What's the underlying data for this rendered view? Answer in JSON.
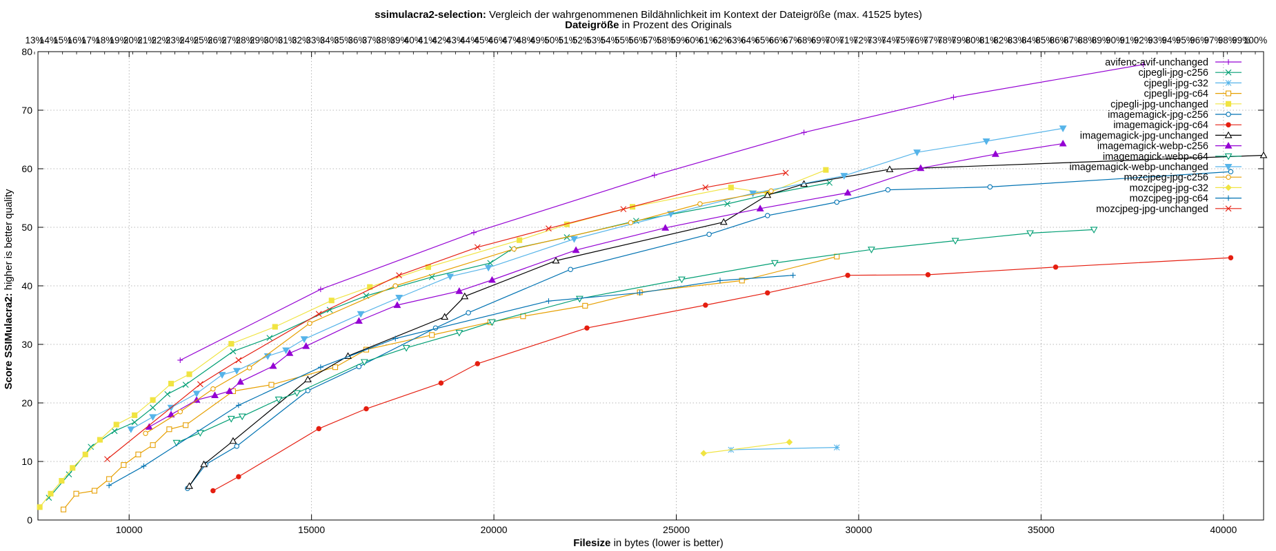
{
  "title_bold": "ssimulacra2-selection:",
  "title_rest": " Vergleich der wahrgenommenen Bildähnlichkeit im Kontext der Dateigröße (max. 41525 bytes)",
  "x2label_bold": "Dateigröße",
  "x2label_rest": " in Prozent des Originals",
  "xlabel_bold": "Filesize",
  "xlabel_rest": " in bytes (lower is better)",
  "ylabel_bold": "Score SSIMulacra2:",
  "ylabel_rest": " higher is better quality",
  "chart_data": {
    "type": "line",
    "title": "ssimulacra2-selection: Vergleich der wahrgenommenen Bildähnlichkeit im Kontext der Dateigröße (max. 41525 bytes)",
    "xlabel": "Filesize in bytes (lower is better)",
    "ylabel": "Score SSIMulacra2: higher is better quality",
    "x2label": "Dateigröße in Prozent des Originals",
    "xlim": [
      7500,
      41100
    ],
    "ylim": [
      0,
      80
    ],
    "xticks": [
      10000,
      15000,
      20000,
      25000,
      30000,
      35000,
      40000
    ],
    "yticks": [
      0,
      10,
      20,
      30,
      40,
      50,
      60,
      70,
      80
    ],
    "x2ticks": [
      "13%",
      "14%",
      "15%",
      "16%",
      "17%",
      "18%",
      "19%",
      "20%",
      "21%",
      "22%",
      "23%",
      "24%",
      "25%",
      "26%",
      "27%",
      "28%",
      "29%",
      "30%",
      "31%",
      "32%",
      "33%",
      "34%",
      "35%",
      "36%",
      "37%",
      "38%",
      "39%",
      "40%",
      "41%",
      "42%",
      "43%",
      "44%",
      "45%",
      "46%",
      "47%",
      "48%",
      "49%",
      "50%",
      "51%",
      "52%",
      "53%",
      "54%",
      "55%",
      "56%",
      "57%",
      "58%",
      "59%",
      "60%",
      "61%",
      "62%",
      "63%",
      "64%",
      "65%",
      "66%",
      "67%",
      "68%",
      "69%",
      "70%",
      "71%",
      "72%",
      "73%",
      "74%",
      "75%",
      "76%",
      "77%",
      "78%",
      "79%",
      "80%",
      "81%",
      "82%",
      "83%",
      "84%",
      "85%",
      "86%",
      "87%",
      "88%",
      "89%",
      "90%",
      "91%",
      "92%",
      "93%",
      "94%",
      "95%",
      "96%",
      "97%",
      "98%",
      "99%",
      "100%"
    ],
    "grid": true,
    "legend_position": "top-right",
    "series": [
      {
        "name": "avifenc-avif-unchanged",
        "color": "#9400d3",
        "marker": "plus",
        "points": [
          [
            11400,
            27.3
          ],
          [
            15250,
            39.4
          ],
          [
            19450,
            49.1
          ],
          [
            24400,
            58.9
          ],
          [
            28500,
            66.2
          ],
          [
            32600,
            72.2
          ],
          [
            37800,
            77.8
          ]
        ]
      },
      {
        "name": "cjpegli-jpg-c256",
        "color": "#009e73",
        "marker": "x",
        "points": [
          [
            7800,
            3.8
          ],
          [
            8350,
            7.8
          ],
          [
            8950,
            12.5
          ],
          [
            9600,
            15.2
          ],
          [
            10150,
            16.7
          ],
          [
            10650,
            19.2
          ],
          [
            11050,
            21.5
          ],
          [
            11550,
            23.1
          ],
          [
            12850,
            28.8
          ],
          [
            13850,
            31.1
          ],
          [
            15500,
            35.9
          ],
          [
            16500,
            38.3
          ],
          [
            18300,
            41.5
          ],
          [
            19900,
            43.9
          ],
          [
            20500,
            46.3
          ],
          [
            22000,
            48.3
          ],
          [
            23900,
            51.1
          ],
          [
            26400,
            54.0
          ],
          [
            27500,
            55.6
          ],
          [
            29200,
            57.6
          ]
        ]
      },
      {
        "name": "cjpegli-jpg-c32",
        "color": "#56b4e9",
        "marker": "star",
        "points": [
          [
            26500,
            12.0
          ],
          [
            29400,
            12.4
          ]
        ]
      },
      {
        "name": "cjpegli-jpg-c64",
        "color": "#e69f00",
        "marker": "square-open",
        "points": [
          [
            8200,
            1.8
          ],
          [
            8550,
            4.5
          ],
          [
            9050,
            5.0
          ],
          [
            9450,
            7.0
          ],
          [
            9850,
            9.4
          ],
          [
            10250,
            11.2
          ],
          [
            10650,
            12.8
          ],
          [
            11100,
            15.5
          ],
          [
            11550,
            16.2
          ],
          [
            12850,
            22.0
          ],
          [
            13900,
            23.1
          ],
          [
            15650,
            26.1
          ],
          [
            16500,
            29.1
          ],
          [
            18300,
            31.6
          ],
          [
            19900,
            33.8
          ],
          [
            20800,
            34.8
          ],
          [
            22500,
            36.6
          ],
          [
            24000,
            38.9
          ],
          [
            26800,
            40.9
          ],
          [
            29400,
            45.0
          ]
        ]
      },
      {
        "name": "cjpegli-jpg-unchanged",
        "color": "#f0e442",
        "marker": "square",
        "points": [
          [
            7550,
            2.2
          ],
          [
            7850,
            4.5
          ],
          [
            8150,
            6.7
          ],
          [
            8450,
            8.9
          ],
          [
            8800,
            11.2
          ],
          [
            9200,
            13.7
          ],
          [
            9650,
            16.3
          ],
          [
            10150,
            17.9
          ],
          [
            10650,
            20.5
          ],
          [
            11150,
            23.3
          ],
          [
            11650,
            24.9
          ],
          [
            12800,
            30.1
          ],
          [
            14000,
            33.0
          ],
          [
            15550,
            37.5
          ],
          [
            16600,
            39.8
          ],
          [
            18200,
            43.2
          ],
          [
            20700,
            47.8
          ],
          [
            22000,
            50.5
          ],
          [
            23800,
            53.5
          ],
          [
            26500,
            56.8
          ],
          [
            27500,
            55.8
          ],
          [
            29100,
            59.8
          ]
        ]
      },
      {
        "name": "imagemagick-jpg-c256",
        "color": "#0072b2",
        "marker": "circle-open",
        "points": [
          [
            11600,
            5.4
          ],
          [
            12100,
            9.5
          ],
          [
            12950,
            12.6
          ],
          [
            14900,
            22.1
          ],
          [
            16300,
            26.2
          ],
          [
            18400,
            32.8
          ],
          [
            19300,
            35.4
          ],
          [
            22100,
            42.8
          ],
          [
            25900,
            48.8
          ],
          [
            27500,
            52.0
          ],
          [
            29400,
            54.3
          ],
          [
            30800,
            56.4
          ],
          [
            33600,
            56.9
          ],
          [
            40200,
            59.5
          ]
        ]
      },
      {
        "name": "imagemagick-jpg-c64",
        "color": "#e51e10",
        "marker": "circle",
        "points": [
          [
            12300,
            5.0
          ],
          [
            13000,
            7.4
          ],
          [
            15200,
            15.6
          ],
          [
            16500,
            19.0
          ],
          [
            18550,
            23.4
          ],
          [
            19550,
            26.7
          ],
          [
            22550,
            32.8
          ],
          [
            25800,
            36.7
          ],
          [
            27500,
            38.8
          ],
          [
            29700,
            41.8
          ],
          [
            31900,
            41.9
          ],
          [
            35400,
            43.2
          ],
          [
            40200,
            44.8
          ]
        ]
      },
      {
        "name": "imagemagick-jpg-unchanged",
        "color": "#000000",
        "marker": "triangle-open",
        "points": [
          [
            11650,
            5.8
          ],
          [
            12050,
            9.5
          ],
          [
            12850,
            13.5
          ],
          [
            14900,
            24.0
          ],
          [
            16000,
            28.0
          ],
          [
            18650,
            34.7
          ],
          [
            19200,
            38.2
          ],
          [
            21700,
            44.3
          ],
          [
            26300,
            50.9
          ],
          [
            27500,
            55.5
          ],
          [
            28500,
            57.4
          ],
          [
            30850,
            59.9
          ],
          [
            41100,
            62.3
          ]
        ]
      },
      {
        "name": "imagemagick-webp-c256",
        "color": "#9400d3",
        "marker": "triangle",
        "points": [
          [
            10550,
            15.9
          ],
          [
            11150,
            18.0
          ],
          [
            11850,
            20.5
          ],
          [
            12350,
            21.3
          ],
          [
            12750,
            22.0
          ],
          [
            13050,
            23.6
          ],
          [
            13950,
            26.3
          ],
          [
            14400,
            28.5
          ],
          [
            14850,
            29.7
          ],
          [
            16300,
            34.0
          ],
          [
            17350,
            36.7
          ],
          [
            19050,
            39.1
          ],
          [
            19950,
            41.0
          ],
          [
            22250,
            46.1
          ],
          [
            24700,
            49.9
          ],
          [
            27300,
            53.2
          ],
          [
            29700,
            55.9
          ],
          [
            31700,
            60.1
          ],
          [
            33750,
            62.5
          ],
          [
            35600,
            64.3
          ]
        ]
      },
      {
        "name": "imagemagick-webp-c64",
        "color": "#009e73",
        "marker": "triangle-down-open",
        "points": [
          [
            11300,
            13.2
          ],
          [
            11950,
            14.9
          ],
          [
            12800,
            17.3
          ],
          [
            13100,
            17.7
          ],
          [
            14100,
            20.6
          ],
          [
            14600,
            21.7
          ],
          [
            16450,
            27.0
          ],
          [
            17600,
            29.4
          ],
          [
            19050,
            32.0
          ],
          [
            19950,
            33.8
          ],
          [
            22350,
            37.8
          ],
          [
            25150,
            41.1
          ],
          [
            27700,
            43.9
          ],
          [
            30350,
            46.2
          ],
          [
            32650,
            47.7
          ],
          [
            34700,
            49.0
          ],
          [
            36450,
            49.6
          ]
        ]
      },
      {
        "name": "imagemagick-webp-unchanged",
        "color": "#56b4e9",
        "marker": "triangle-down",
        "points": [
          [
            10050,
            15.5
          ],
          [
            10650,
            17.6
          ],
          [
            11150,
            19.2
          ],
          [
            11850,
            21.6
          ],
          [
            12550,
            24.8
          ],
          [
            12950,
            25.5
          ],
          [
            13800,
            28.0
          ],
          [
            14300,
            29.0
          ],
          [
            14800,
            30.9
          ],
          [
            16350,
            35.2
          ],
          [
            17400,
            38.0
          ],
          [
            18800,
            41.6
          ],
          [
            19850,
            43.1
          ],
          [
            22200,
            48.0
          ],
          [
            24850,
            52.3
          ],
          [
            27100,
            55.8
          ],
          [
            29600,
            58.8
          ],
          [
            31600,
            62.8
          ],
          [
            33500,
            64.7
          ],
          [
            35600,
            66.9
          ]
        ]
      },
      {
        "name": "mozcjpeg-jpg-c256",
        "color": "#e69f00",
        "marker": "circle-open",
        "points": [
          [
            10450,
            14.8
          ],
          [
            11400,
            18.5
          ],
          [
            12300,
            22.4
          ],
          [
            13300,
            26.0
          ],
          [
            14950,
            33.6
          ],
          [
            17300,
            40.0
          ],
          [
            20550,
            46.3
          ],
          [
            23750,
            50.8
          ],
          [
            25650,
            54.0
          ],
          [
            27600,
            56.2
          ]
        ]
      },
      {
        "name": "mozcjpeg-jpg-c32",
        "color": "#f0e442",
        "marker": "diamond",
        "points": [
          [
            25750,
            11.4
          ],
          [
            28100,
            13.3
          ]
        ]
      },
      {
        "name": "mozcjpeg-jpg-c64",
        "color": "#0072b2",
        "marker": "plus",
        "points": [
          [
            9450,
            5.9
          ],
          [
            10400,
            9.2
          ],
          [
            13000,
            19.6
          ],
          [
            15250,
            26.1
          ],
          [
            17300,
            31.0
          ],
          [
            21500,
            37.4
          ],
          [
            24000,
            38.8
          ],
          [
            26200,
            40.9
          ],
          [
            28200,
            41.8
          ]
        ]
      },
      {
        "name": "mozcjpeg-jpg-unchanged",
        "color": "#e51e10",
        "marker": "x",
        "points": [
          [
            9400,
            10.4
          ],
          [
            11950,
            23.2
          ],
          [
            13000,
            27.3
          ],
          [
            15200,
            35.2
          ],
          [
            17400,
            41.8
          ],
          [
            19550,
            46.6
          ],
          [
            21500,
            49.8
          ],
          [
            23550,
            53.1
          ],
          [
            25800,
            56.8
          ],
          [
            28000,
            59.3
          ]
        ]
      }
    ]
  }
}
